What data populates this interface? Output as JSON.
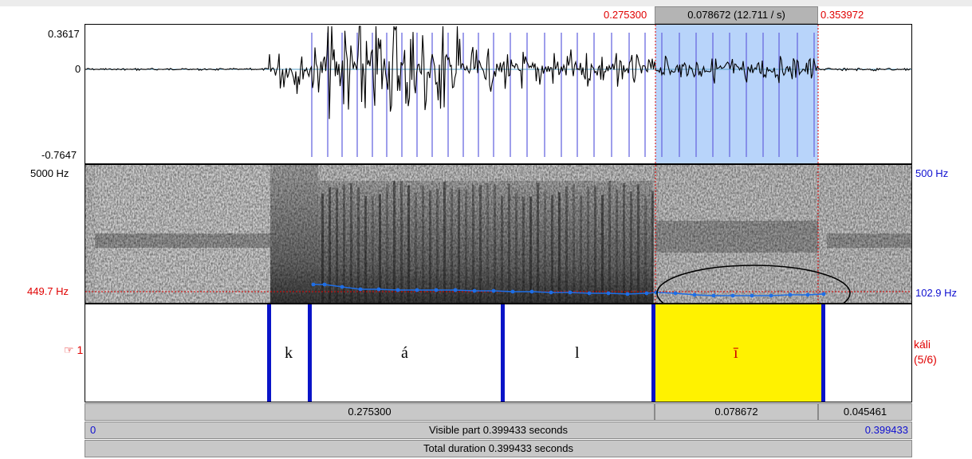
{
  "selection": {
    "start_label": "0.275300",
    "duration_label": "0.078672 (12.711 / s)",
    "end_label": "0.353972"
  },
  "waveform": {
    "y_max": "0.3617",
    "y_zero": "0",
    "y_min": "-0.7647"
  },
  "spectrogram": {
    "freq_top": "5000 Hz",
    "freq_cursor": "449.7 Hz",
    "pitch_top": "500 Hz",
    "pitch_bottom": "102.9 Hz"
  },
  "tier": {
    "number_label": "☞ 1",
    "name": "káli",
    "count": "(5/6)",
    "intervals": [
      {
        "text": ""
      },
      {
        "text": "k"
      },
      {
        "text": "á"
      },
      {
        "text": "l"
      },
      {
        "text": "ī"
      },
      {
        "text": ""
      }
    ]
  },
  "durations": {
    "before": "0.275300",
    "selected": "0.078672",
    "after": "0.045461"
  },
  "visible": {
    "start": "0",
    "label": "Visible part 0.399433 seconds",
    "end": "0.399433"
  },
  "total": {
    "label": "Total duration 0.399433 seconds"
  },
  "colors": {
    "selection_fill": "#b8d4fa",
    "interval_highlight": "#fff200",
    "boundary": "#0a14c8",
    "pitch": "#1e6ee6",
    "cursor": "#e00000"
  }
}
